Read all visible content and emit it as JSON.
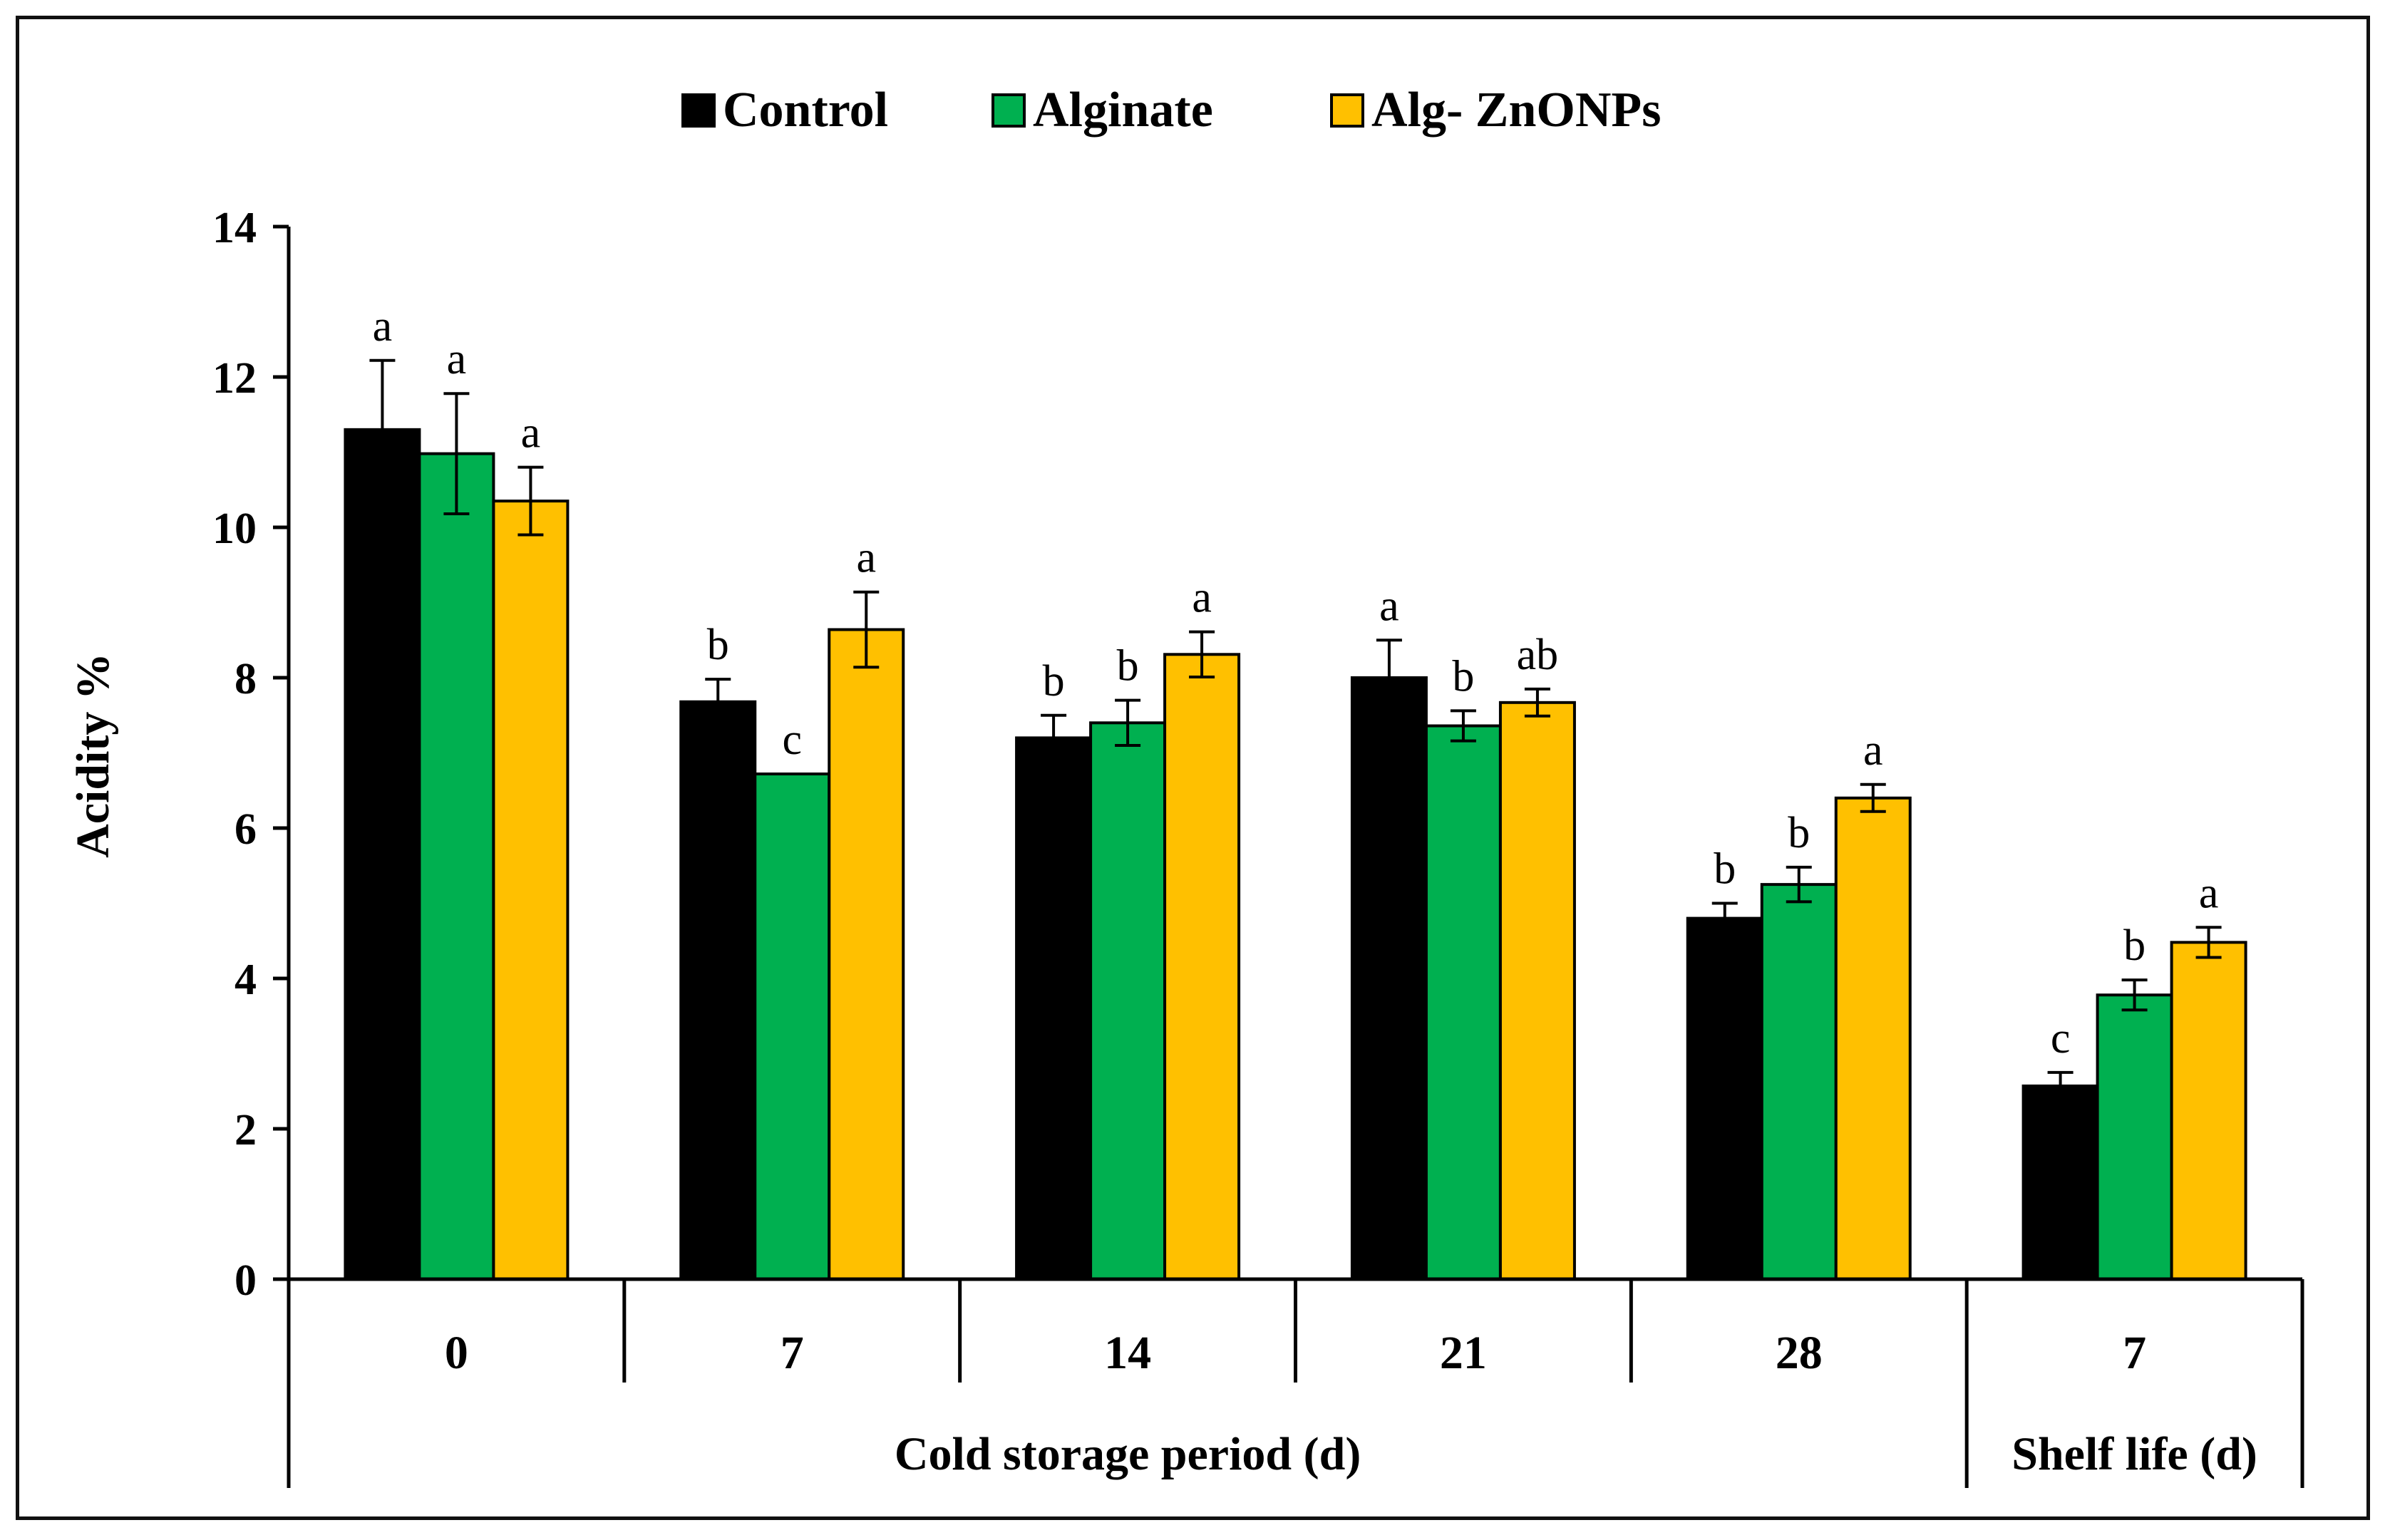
{
  "colors": {
    "Control": "#000000",
    "Alginate": "#00b050",
    "Alg- ZnONPs": "#ffc000"
  },
  "chart_data": {
    "type": "bar",
    "ylabel": "Acidity %",
    "ylim": [
      0,
      14
    ],
    "yticks": [
      0,
      2,
      4,
      6,
      8,
      10,
      12,
      14
    ],
    "categories": [
      "0",
      "7",
      "14",
      "21",
      "28",
      "7"
    ],
    "groups": [
      {
        "label": "Cold storage period (d)",
        "categories": [
          "0",
          "7",
          "14",
          "21",
          "28"
        ]
      },
      {
        "label": "Shelf life (d)",
        "categories": [
          "7"
        ]
      }
    ],
    "legend_position": "top",
    "series": [
      {
        "name": "Control",
        "values": [
          11.3,
          7.68,
          7.2,
          8.0,
          4.8,
          2.57
        ],
        "errors": [
          0.92,
          0.3,
          0.3,
          0.5,
          0.2,
          0.18
        ],
        "letters": [
          "a",
          "b",
          "b",
          "a",
          "b",
          "c"
        ]
      },
      {
        "name": "Alginate",
        "values": [
          10.98,
          6.72,
          7.4,
          7.36,
          5.25,
          3.78
        ],
        "errors": [
          0.8,
          0.0,
          0.3,
          0.2,
          0.23,
          0.2
        ],
        "letters": [
          "a",
          "c",
          "b",
          "b",
          "b",
          "b"
        ]
      },
      {
        "name": "Alg- ZnONPs",
        "values": [
          10.35,
          8.64,
          8.31,
          7.67,
          6.4,
          4.48
        ],
        "errors": [
          0.45,
          0.5,
          0.3,
          0.18,
          0.18,
          0.2
        ],
        "letters": [
          "a",
          "a",
          "a",
          "ab",
          "a",
          "a"
        ]
      }
    ]
  }
}
